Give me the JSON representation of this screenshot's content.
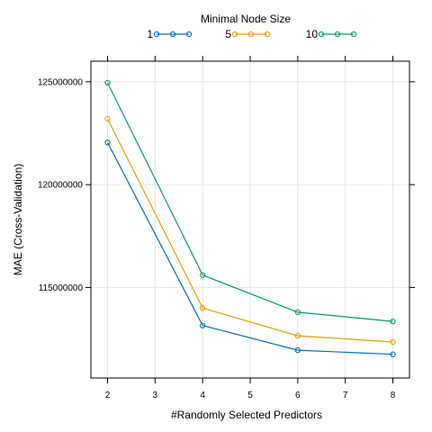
{
  "chart_data": {
    "type": "line",
    "title": "",
    "xlabel": "#Randomly Selected Predictors",
    "ylabel": "MAE (Cross-Validation)",
    "x": [
      2,
      4,
      6,
      8
    ],
    "xticks": [
      2,
      3,
      4,
      5,
      6,
      7,
      8
    ],
    "yticks": [
      115000000,
      120000000,
      125000000
    ],
    "xlim": [
      1.65,
      8.35
    ],
    "ylim": [
      110600000,
      126000000
    ],
    "grid": true,
    "legend": {
      "title": "Minimal Node Size",
      "placement": "top"
    },
    "series": [
      {
        "name": "1",
        "color": "#0072B2",
        "values": [
          122050000,
          113150000,
          111950000,
          111750000
        ]
      },
      {
        "name": "5",
        "color": "#E69F00",
        "values": [
          123200000,
          114000000,
          112650000,
          112350000
        ]
      },
      {
        "name": "10",
        "color": "#009E73",
        "values": [
          124950000,
          115600000,
          113800000,
          113350000
        ]
      }
    ]
  }
}
